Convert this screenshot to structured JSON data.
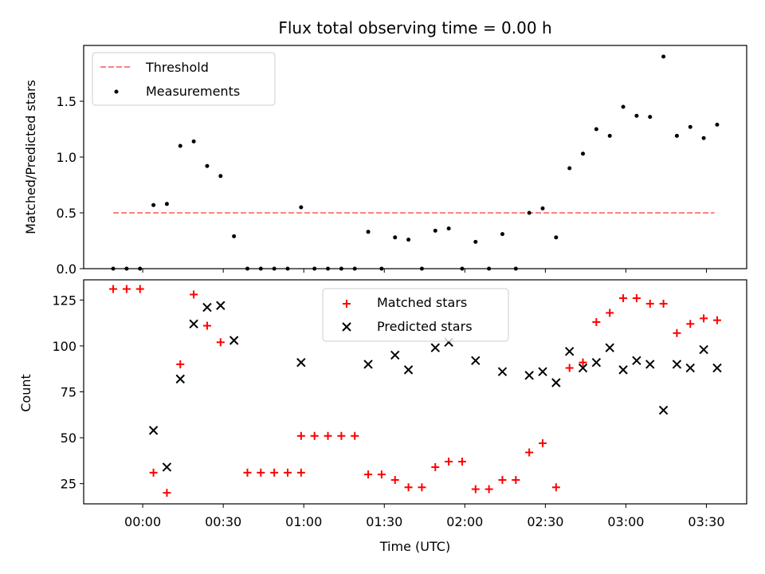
{
  "chart_data": [
    {
      "type": "scatter",
      "title": "Flux total observing time = 0.00 h",
      "xlabel": "",
      "ylabel": "Matched/Predicted stars",
      "xlim": [
        "-00:22",
        "03:45"
      ],
      "ylim": [
        0,
        2.0
      ],
      "yticks": [
        "0.0",
        "0.5",
        "1.0",
        "1.5"
      ],
      "grid": false,
      "legend_position": "upper left",
      "colors": {
        "threshold": "#ff8080",
        "measurements": "#000000"
      },
      "threshold": {
        "name": "Threshold",
        "value": 0.5,
        "x": [
          "-00:11",
          "03:33"
        ]
      },
      "measurements": {
        "name": "Measurements",
        "x": [
          "-00:11",
          "-00:06",
          "-00:01",
          "00:04",
          "00:09",
          "00:14",
          "00:19",
          "00:24",
          "00:29",
          "00:34",
          "00:39",
          "00:44",
          "00:49",
          "00:54",
          "00:59",
          "01:04",
          "01:09",
          "01:14",
          "01:19",
          "01:24",
          "01:29",
          "01:34",
          "01:39",
          "01:44",
          "01:49",
          "01:54",
          "01:59",
          "02:04",
          "02:09",
          "02:14",
          "02:19",
          "02:24",
          "02:29",
          "02:34",
          "02:39",
          "02:44",
          "02:49",
          "02:54",
          "02:59",
          "03:04",
          "03:09",
          "03:14",
          "03:19",
          "03:24",
          "03:29",
          "03:34"
        ],
        "y": [
          0,
          0,
          0,
          0.57,
          0.58,
          1.1,
          1.14,
          0.92,
          0.83,
          0.29,
          0,
          0,
          0,
          0,
          0.55,
          0,
          0,
          0,
          0,
          0.33,
          0,
          0.28,
          0.26,
          0,
          0.34,
          0.36,
          0,
          0.24,
          0,
          0.31,
          0,
          0.5,
          0.54,
          0.28,
          0.9,
          1.03,
          1.25,
          1.19,
          1.45,
          1.37,
          1.36,
          1.9,
          1.19,
          1.27,
          1.17,
          1.29
        ]
      }
    },
    {
      "type": "scatter",
      "title": "",
      "xlabel": "Time (UTC)",
      "ylabel": "Count",
      "xlim": [
        "-00:22",
        "03:45"
      ],
      "ylim": [
        14,
        136
      ],
      "yticks": [
        "25",
        "50",
        "75",
        "100",
        "125"
      ],
      "xticks": [
        "00:00",
        "00:30",
        "01:00",
        "01:30",
        "02:00",
        "02:30",
        "03:00",
        "03:30"
      ],
      "grid": false,
      "legend_position": "upper center",
      "colors": {
        "matched": "#ff0000",
        "predicted": "#000000"
      },
      "series": [
        {
          "name": "Matched stars",
          "marker": "plus",
          "x": [
            "-00:11",
            "-00:06",
            "-00:01",
            "00:04",
            "00:09",
            "00:14",
            "00:19",
            "00:24",
            "00:29",
            "00:39",
            "00:44",
            "00:49",
            "00:54",
            "00:59",
            "00:59",
            "01:04",
            "01:09",
            "01:14",
            "01:19",
            "01:24",
            "01:29",
            "01:34",
            "01:39",
            "01:44",
            "01:49",
            "01:54",
            "01:59",
            "02:04",
            "02:09",
            "02:14",
            "02:19",
            "02:24",
            "02:29",
            "02:34",
            "02:39",
            "02:44",
            "02:49",
            "02:54",
            "02:59",
            "03:04",
            "03:09",
            "03:14",
            "03:19",
            "03:24",
            "03:29",
            "03:34"
          ],
          "values": [
            131,
            131,
            131,
            31,
            20,
            90,
            128,
            111,
            102,
            31,
            31,
            31,
            31,
            31,
            51,
            51,
            51,
            51,
            51,
            30,
            30,
            27,
            23,
            23,
            34,
            37,
            37,
            22,
            22,
            27,
            27,
            42,
            47,
            23,
            88,
            91,
            113,
            118,
            126,
            126,
            123,
            123,
            107,
            112,
            115,
            114
          ]
        },
        {
          "name": "Predicted stars",
          "marker": "x",
          "x": [
            "00:04",
            "00:09",
            "00:14",
            "00:19",
            "00:24",
            "00:29",
            "00:34",
            "00:59",
            "01:24",
            "01:34",
            "01:39",
            "01:49",
            "01:54",
            "02:04",
            "02:14",
            "02:24",
            "02:29",
            "02:34",
            "02:39",
            "02:44",
            "02:49",
            "02:54",
            "02:59",
            "03:04",
            "03:09",
            "03:14",
            "03:19",
            "03:24",
            "03:29",
            "03:34"
          ],
          "values": [
            54,
            34,
            82,
            112,
            121,
            122,
            103,
            91,
            90,
            95,
            87,
            99,
            102,
            92,
            86,
            84,
            86,
            80,
            97,
            88,
            91,
            99,
            87,
            92,
            90,
            65,
            90,
            88,
            98,
            88
          ]
        }
      ]
    }
  ]
}
